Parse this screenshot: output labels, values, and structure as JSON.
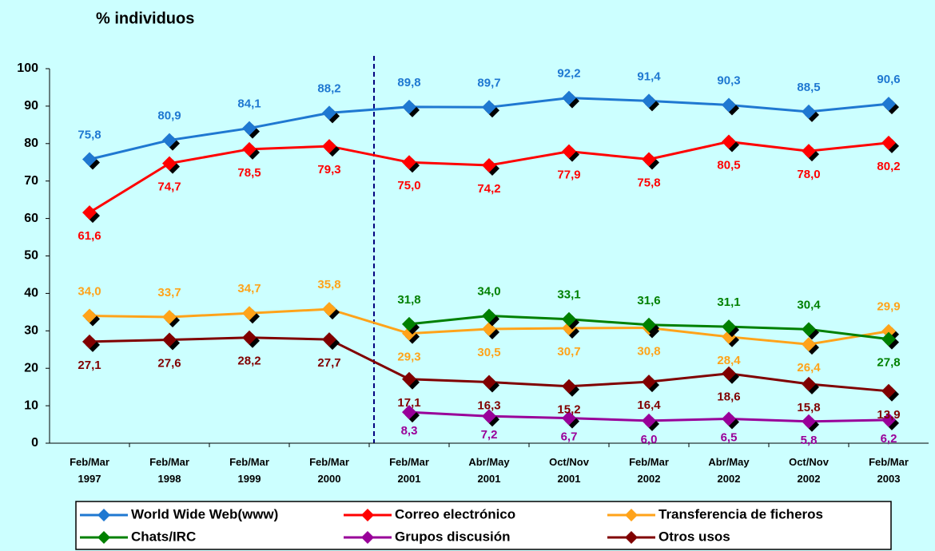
{
  "chart_data": {
    "type": "line",
    "title": "% individuos",
    "categories": [
      "Feb/Mar 1997",
      "Feb/Mar 1998",
      "Feb/Mar 1999",
      "Feb/Mar 2000",
      "Feb/Mar 2001",
      "Abr/May 2001",
      "Oct/Nov 2001",
      "Feb/Mar 2002",
      "Abr/May 2002",
      "Oct/Nov 2002",
      "Feb/Mar 2003"
    ],
    "ylim": [
      0,
      100
    ],
    "yticks": [
      0,
      10,
      20,
      30,
      40,
      50,
      60,
      70,
      80,
      90,
      100
    ],
    "grid": false,
    "series": [
      {
        "name": "World Wide Web(www)",
        "color": "#1f78d1",
        "values": [
          75.8,
          80.9,
          84.1,
          88.2,
          89.8,
          89.7,
          92.2,
          91.4,
          90.3,
          88.5,
          90.6
        ],
        "value_labels": [
          "75,8",
          "80,9",
          "84,1",
          "88,2",
          "89,8",
          "89,7",
          "92,2",
          "91,4",
          "90,3",
          "88,5",
          "90,6"
        ]
      },
      {
        "name": "Correo electrónico",
        "color": "#ff0000",
        "values": [
          61.6,
          74.7,
          78.5,
          79.3,
          75.0,
          74.2,
          77.9,
          75.8,
          80.5,
          78.0,
          80.2
        ],
        "value_labels": [
          "61,6",
          "74,7",
          "78,5",
          "79,3",
          "75,0",
          "74,2",
          "77,9",
          "75,8",
          "80,5",
          "78,0",
          "80,2"
        ]
      },
      {
        "name": "Transferencia de ficheros",
        "color": "#ffa31a",
        "values": [
          34.0,
          33.7,
          34.7,
          35.8,
          29.3,
          30.5,
          30.7,
          30.8,
          28.4,
          26.4,
          29.9
        ],
        "value_labels": [
          "34,0",
          "33,7",
          "34,7",
          "35,8",
          "29,3",
          "30,5",
          "30,7",
          "30,8",
          "28,4",
          "26,4",
          "29,9"
        ]
      },
      {
        "name": "Chats/IRC",
        "color": "#008000",
        "values": [
          null,
          null,
          null,
          null,
          31.8,
          34.0,
          33.1,
          31.6,
          31.1,
          30.4,
          27.8
        ],
        "value_labels": [
          null,
          null,
          null,
          null,
          "31,8",
          "34,0",
          "33,1",
          "31,6",
          "31,1",
          "30,4",
          "27,8"
        ]
      },
      {
        "name": "Grupos discusión",
        "color": "#990099",
        "values": [
          null,
          null,
          null,
          null,
          8.3,
          7.2,
          6.7,
          6.0,
          6.5,
          5.8,
          6.2
        ],
        "value_labels": [
          null,
          null,
          null,
          null,
          "8,3",
          "7,2",
          "6,7",
          "6,0",
          "6,5",
          "5,8",
          "6,2"
        ]
      },
      {
        "name": "Otros usos",
        "color": "#800000",
        "values": [
          27.1,
          27.6,
          28.2,
          27.7,
          17.1,
          16.3,
          15.2,
          16.4,
          18.6,
          15.8,
          13.9
        ],
        "value_labels": [
          "27,1",
          "27,6",
          "28,2",
          "27,7",
          "17,1",
          "16,3",
          "15,2",
          "16,4",
          "18,6",
          "15,8",
          "13,9"
        ]
      }
    ]
  }
}
